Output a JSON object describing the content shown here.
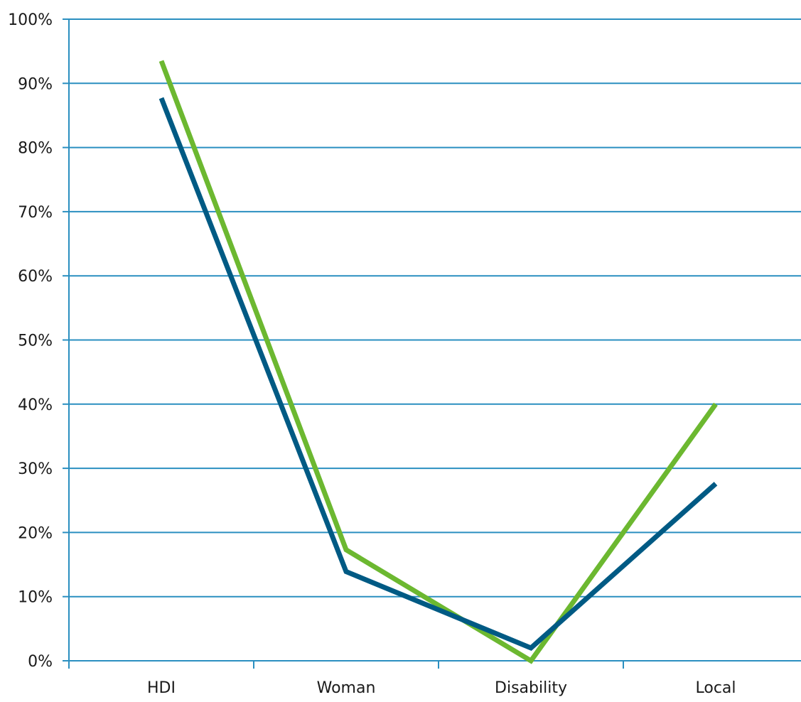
{
  "chart_data": {
    "type": "line",
    "title": "",
    "xlabel": "",
    "ylabel": "",
    "categories": [
      "HDI",
      "Woman",
      "Disability",
      "Local"
    ],
    "ylim": [
      0,
      100
    ],
    "ytick_labels": [
      "0%",
      "10%",
      "20%",
      "30%",
      "40%",
      "50%",
      "60%",
      "70%",
      "80%",
      "90%",
      "100%"
    ],
    "grid": true,
    "legend": "none",
    "series": [
      {
        "color": "#6cb830",
        "values": [
          93.5,
          17.3,
          0.0,
          40.0
        ]
      },
      {
        "color": "#005a84",
        "values": [
          87.7,
          13.9,
          2.0,
          27.6
        ]
      }
    ],
    "colors": {
      "gridline": "#2a8fc0",
      "axis": "#2a8fc0"
    }
  }
}
